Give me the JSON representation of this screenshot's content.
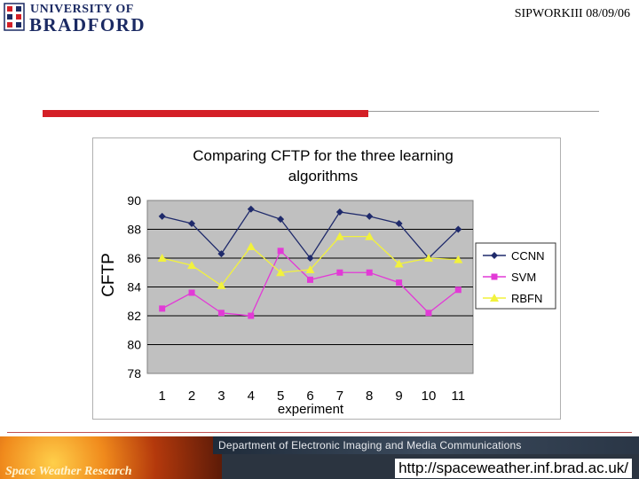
{
  "header": {
    "logo_line1": "UNIVERSITY OF",
    "logo_line2": "BRADFORD",
    "right_text": "SIPWORKIII 08/09/06"
  },
  "footer": {
    "dept_text": "Department of Electronic Imaging and Media Communications",
    "banner_text": "Space Weather Research",
    "url": "http://spaceweather.inf.brad.ac.uk/"
  },
  "colors": {
    "accent_red": "#d41f26",
    "brand_navy": "#1b2a63",
    "plot_bg": "#c0c0c0"
  },
  "chart_data": {
    "type": "line",
    "title": "Comparing CFTP for the three learning algorithms",
    "title_lines": [
      "Comparing CFTP for the three learning",
      "algorithms"
    ],
    "xlabel": "experiment",
    "ylabel": "CFTP",
    "categories": [
      "1",
      "2",
      "3",
      "4",
      "5",
      "6",
      "7",
      "8",
      "9",
      "10",
      "11"
    ],
    "ylim": [
      78,
      90
    ],
    "yticks": [
      90,
      88,
      86,
      84,
      82,
      80,
      78
    ],
    "grid": true,
    "legend_position": "right",
    "series": [
      {
        "name": "CCNN",
        "color": "#1f2a6b",
        "marker": "diamond",
        "values": [
          88.9,
          88.4,
          86.3,
          89.4,
          88.7,
          86.0,
          89.2,
          88.9,
          88.4,
          86.0,
          88.0
        ]
      },
      {
        "name": "SVM",
        "color": "#e23ad6",
        "marker": "square",
        "values": [
          82.5,
          83.6,
          82.2,
          82.0,
          86.5,
          84.5,
          85.0,
          85.0,
          84.3,
          82.2,
          83.8
        ]
      },
      {
        "name": "RBFN",
        "color": "#f2f23c",
        "marker": "triangle",
        "values": [
          86.0,
          85.5,
          84.1,
          86.8,
          85.0,
          85.2,
          87.5,
          87.5,
          85.6,
          86.0,
          85.9
        ]
      }
    ]
  }
}
